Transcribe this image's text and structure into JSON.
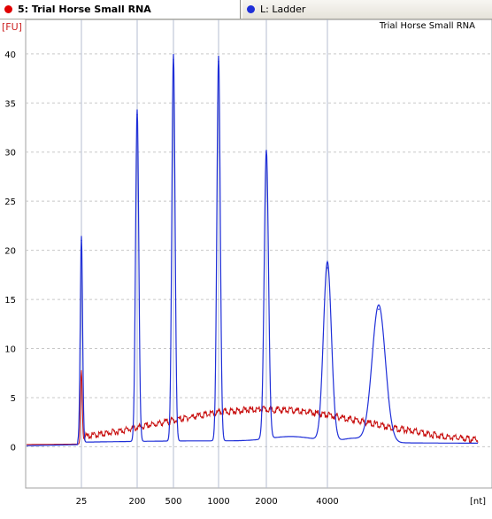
{
  "tabs": [
    {
      "label": "5: Trial Horse Small RNA",
      "color": "#e00000"
    },
    {
      "label": "L: Ladder",
      "color": "#1f2fd8"
    }
  ],
  "chart_data": {
    "type": "line",
    "title": "Trial Horse Small RNA",
    "xlabel": "[nt]",
    "ylabel": "[FU]",
    "ylim": [
      -4.2,
      43.5
    ],
    "y_ticks": [
      0,
      5,
      10,
      15,
      20,
      25,
      30,
      35,
      40
    ],
    "x_ticks": [
      {
        "label": "25",
        "x": 25
      },
      {
        "label": "200",
        "x": 200
      },
      {
        "label": "500",
        "x": 500
      },
      {
        "label": "1000",
        "x": 1000
      },
      {
        "label": "2000",
        "x": 2000
      },
      {
        "label": "4000",
        "x": 4000
      }
    ],
    "grid": true,
    "series": [
      {
        "name": "L: Ladder",
        "color": "#1f2fd8",
        "peaks": [
          {
            "x": 25,
            "height": 21
          },
          {
            "x": 200,
            "height": 33.8
          },
          {
            "x": 500,
            "height": 39.4
          },
          {
            "x": 1000,
            "height": 39.2
          },
          {
            "x": 2000,
            "height": 29.4
          },
          {
            "x": 4000,
            "height": 18.2
          },
          {
            "x": 6000,
            "height": 14
          }
        ]
      },
      {
        "name": "5: Trial Horse Small RNA",
        "color": "#c81010",
        "peaks": [
          {
            "x": 25,
            "height": 6.8
          }
        ],
        "broad_hump_max": 3.6
      }
    ]
  }
}
